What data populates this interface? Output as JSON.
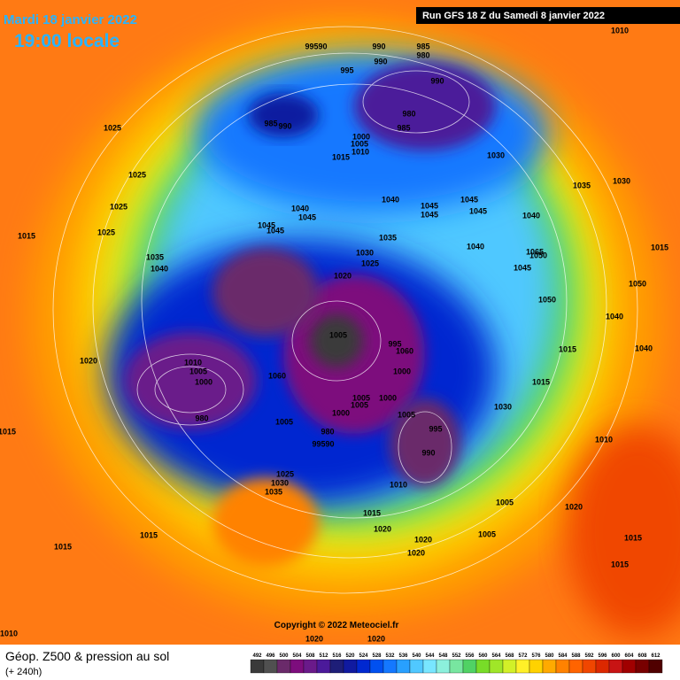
{
  "header": {
    "date": "Mardi 18 janvier 2022",
    "time": "19:00 locale",
    "run": "Run GFS 18 Z du Samedi 8 janvier 2022"
  },
  "copyright": "Copyright © 2022 Meteociel.fr",
  "footer": {
    "title": "Géop. Z500 & pression au sol",
    "lead": "(+ 240h)"
  },
  "isobar_labels": [
    1010,
    99590,
    990,
    985,
    980,
    990,
    995,
    990,
    1025,
    985,
    990,
    980,
    985,
    1000,
    1005,
    1010,
    1015,
    1030,
    1025,
    1035,
    1030,
    1025,
    1040,
    1045,
    1040,
    1045,
    1045,
    1045,
    1045,
    1040,
    1045,
    1045,
    1025,
    1015,
    1035,
    1040,
    1065,
    1050,
    1045,
    1015,
    1035,
    1030,
    1025,
    1040,
    1020,
    1050,
    1050,
    1040,
    1005,
    995,
    1060,
    1010,
    1005,
    1000,
    1060,
    1000,
    1015,
    1020,
    1015,
    1040,
    980,
    1005,
    1005,
    1005,
    1000,
    1000,
    1005,
    980,
    99590,
    995,
    1030,
    990,
    1010,
    1015,
    1025,
    1030,
    1035,
    1010,
    1005,
    1015,
    1020,
    1020,
    1020,
    1005,
    1015,
    1020,
    1015,
    1015,
    1015,
    1020,
    1020,
    1010
  ],
  "colorbar": {
    "labels": [
      492,
      496,
      500,
      504,
      508,
      512,
      516,
      520,
      524,
      528,
      532,
      536,
      540,
      544,
      548,
      552,
      556,
      560,
      564,
      568,
      572,
      576,
      580,
      584,
      588,
      592,
      596,
      600,
      604,
      608,
      612
    ],
    "colors": [
      "#3a3a3a",
      "#505050",
      "#6a2a6a",
      "#7d0d7d",
      "#6a1a8a",
      "#4b1a9a",
      "#1e1e78",
      "#101aa0",
      "#0028d0",
      "#0050f0",
      "#1478ff",
      "#28a0ff",
      "#50c8ff",
      "#78e6ff",
      "#8cf0dc",
      "#78e6a0",
      "#50d264",
      "#78dc28",
      "#a0e628",
      "#d2f028",
      "#fff028",
      "#ffd200",
      "#ffaa00",
      "#ff8200",
      "#ff6400",
      "#f04600",
      "#dc2800",
      "#c81414",
      "#a00000",
      "#780000",
      "#500000"
    ]
  }
}
